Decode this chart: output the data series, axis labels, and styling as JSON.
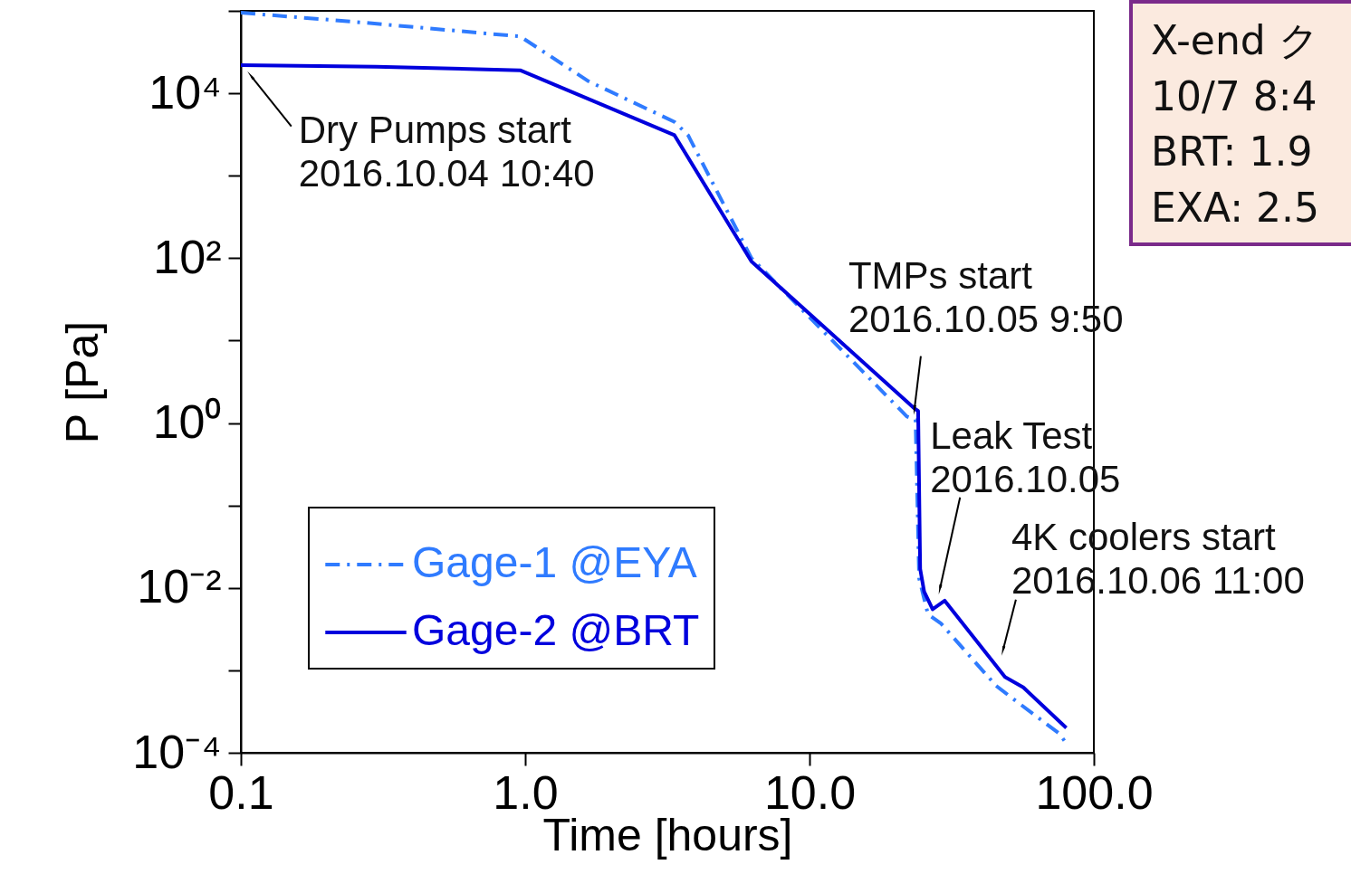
{
  "chart_data": {
    "type": "line",
    "xlabel": "Time [hours]",
    "ylabel": "P [Pa]",
    "log": "xy",
    "grid": false,
    "legend": "bottom left",
    "marker": "none",
    "xlim": [
      0.1,
      100
    ],
    "xticks": [
      0.1,
      {
        "value": 1,
        "label": "1.0"
      },
      {
        "value": 10,
        "label": "10.0"
      },
      {
        "value": 100,
        "label": "100.0"
      }
    ],
    "ylim": [
      0.0001,
      100000
    ],
    "yticks": [
      {
        "value": 0.0001,
        "label": "10⁻⁴"
      },
      {
        "value": 0.001,
        "label": null
      },
      {
        "value": 0.01,
        "label": "10⁻²"
      },
      {
        "value": 0.1,
        "label": null
      },
      {
        "value": 1,
        "label": "10⁰"
      },
      {
        "value": 10,
        "label": null
      },
      {
        "value": 100,
        "label": "10²"
      },
      {
        "value": 1000,
        "label": null
      },
      {
        "value": 10000,
        "label": "10⁴"
      },
      {
        "value": 100000,
        "label": null
      }
    ],
    "series": [
      {
        "name": "Gage-1 @EYA",
        "color": "#2f7bff",
        "line_style": "dashed",
        "x": [
          0.1,
          0.27,
          0.96,
          1.67,
          3.35,
          3.74,
          6.25,
          22,
          23.6,
          24.3,
          26.1,
          29,
          45.3,
          52.5,
          75.7,
          80
        ],
        "values": [
          95000,
          72000,
          49000,
          14000,
          4500,
          3100,
          100,
          1.2,
          1.1,
          0.013,
          0.0048,
          0.0037,
          0.00065,
          0.00044,
          0.00017,
          0.00013
        ]
      },
      {
        "name": "Gage-2 @BRT",
        "color": "#0000dd",
        "line_style": "solid",
        "x": [
          0.1,
          0.3,
          0.96,
          3.35,
          6.25,
          23.4,
          24.1,
          24.5,
          25.3,
          27.1,
          29.9,
          48.7,
          56.5,
          80
        ],
        "values": [
          22000,
          21000,
          19000,
          3100,
          91,
          1.5,
          1.4,
          0.017,
          0.009,
          0.0055,
          0.007,
          0.00083,
          0.00062,
          0.0002
        ]
      }
    ],
    "annotations": [
      {
        "text": "Dry Pumps start\n2016.10.04 10:40",
        "x": 0.109,
        "y": 16000
      },
      {
        "text": "TMPs start\n2016.10.05 9:50",
        "x": 23.4,
        "y": 1.5
      },
      {
        "text": "Leak Test\n2016.10.05",
        "x": 28.8,
        "y": 0.01
      },
      {
        "text": "4K coolers start\n2016.10.06 11:00",
        "x": 48,
        "y": 0.0018
      },
      "X-end ク\n10/7 8:4\nBRT: 1.9\nEXA: 2.5"
    ]
  }
}
